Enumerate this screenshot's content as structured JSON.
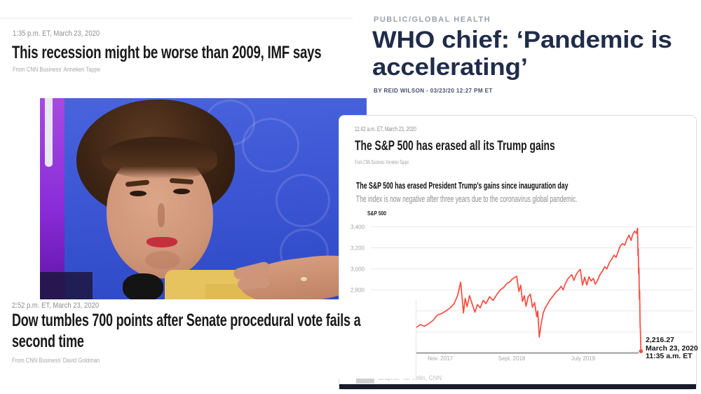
{
  "articles": {
    "recession": {
      "timestamp": "1:35 p.m. ET, March 23, 2020",
      "headline": "This recession might be worse than 2009, IMF says",
      "byline": "From CNN Business’ Anneken Tappe"
    },
    "who": {
      "kicker": "PUBLIC/GLOBAL HEALTH",
      "headline_lines": [
        "WHO chief: ‘Pandemic is",
        "accelerating’"
      ],
      "byline": "BY REID WILSON - 03/23/20 12:27 PM ET"
    },
    "sp500": {
      "timestamp": "11:42 a.m. ET, March 23, 2020",
      "headline": "The S&P 500 has erased all its Trump gains",
      "byline": "From CNN Business’ Anneken Tappe"
    },
    "dow": {
      "timestamp": "2:52 p.m. ET, March 23, 2020",
      "headline_lines": [
        "Dow tumbles 700 points after Senate procedural vote fails a",
        "second time"
      ],
      "byline": "From CNN Business’ David Goldman"
    }
  },
  "chart_data": {
    "type": "line",
    "title": "The S&P 500 has erased President Trump's gains since inauguration day",
    "subtitle": "The index is now negative after three years due to the coronavirus global pandemic.",
    "legend": "S&P 500",
    "credit": "Graphic: Tal Yellin, CNN",
    "line_color": "#fb4a3e",
    "grid_color": "#e8e8e8",
    "axis_color": "#9b9b9b",
    "tick_color": "#a5a5a5",
    "ylim": [
      2200,
      3400
    ],
    "y_axis": {
      "baseline": 2200,
      "gridlines": [
        {
          "v": 3400,
          "label": "3,400"
        },
        {
          "v": 3200,
          "label": "3,200"
        },
        {
          "v": 3000,
          "label": "3,000"
        },
        {
          "v": 2800,
          "label": "2,800"
        },
        {
          "v": 2600,
          "label": ""
        },
        {
          "v": 2400,
          "label": ""
        }
      ]
    },
    "x_axis": {
      "ticks": [
        {
          "label": "Nov. 2017",
          "m": 10
        },
        {
          "label": "Sept. 2018",
          "m": 20
        },
        {
          "label": "July 2019",
          "m": 30
        }
      ]
    },
    "annotation": {
      "lines": [
        "2,216.27",
        "March 23, 2020",
        "11:35 a.m. ET"
      ],
      "value": 2216.27
    },
    "series": {
      "name": "S&P 500",
      "x_unit": "months since Jan 2017",
      "points": [
        [
          0.6,
          2271
        ],
        [
          1.2,
          2280
        ],
        [
          1.8,
          2330
        ],
        [
          2.4,
          2363
        ],
        [
          2.8,
          2340
        ],
        [
          3.4,
          2385
        ],
        [
          4.2,
          2390
        ],
        [
          4.8,
          2406
        ],
        [
          5.4,
          2430
        ],
        [
          6.0,
          2415
        ],
        [
          6.6,
          2440
        ],
        [
          7.2,
          2470
        ],
        [
          7.8,
          2455
        ],
        [
          8.4,
          2480
        ],
        [
          9.0,
          2510
        ],
        [
          9.6,
          2560
        ],
        [
          10.2,
          2575
        ],
        [
          10.8,
          2600
        ],
        [
          11.4,
          2630
        ],
        [
          11.9,
          2665
        ],
        [
          12.4,
          2740
        ],
        [
          12.85,
          2873
        ],
        [
          13.1,
          2700
        ],
        [
          13.25,
          2581
        ],
        [
          13.5,
          2720
        ],
        [
          13.75,
          2640
        ],
        [
          14.1,
          2745
        ],
        [
          14.4,
          2680
        ],
        [
          14.85,
          2588
        ],
        [
          15.2,
          2660
        ],
        [
          15.6,
          2630
        ],
        [
          16.0,
          2700
        ],
        [
          16.4,
          2670
        ],
        [
          16.9,
          2735
        ],
        [
          17.4,
          2700
        ],
        [
          17.9,
          2755
        ],
        [
          18.4,
          2800
        ],
        [
          18.9,
          2825
        ],
        [
          19.3,
          2860
        ],
        [
          19.7,
          2875
        ],
        [
          20.1,
          2905
        ],
        [
          20.7,
          2930
        ],
        [
          21.0,
          2785
        ],
        [
          21.25,
          2845
        ],
        [
          21.5,
          2690
        ],
        [
          21.75,
          2745
        ],
        [
          22.0,
          2645
        ],
        [
          22.3,
          2735
        ],
        [
          22.6,
          2760
        ],
        [
          22.9,
          2635
        ],
        [
          23.2,
          2680
        ],
        [
          23.5,
          2545
        ],
        [
          23.65,
          2600
        ],
        [
          23.85,
          2351
        ],
        [
          24.1,
          2470
        ],
        [
          24.4,
          2580
        ],
        [
          24.7,
          2630
        ],
        [
          25.0,
          2665
        ],
        [
          25.4,
          2710
        ],
        [
          25.8,
          2745
        ],
        [
          26.2,
          2780
        ],
        [
          26.6,
          2805
        ],
        [
          26.9,
          2835
        ],
        [
          27.2,
          2800
        ],
        [
          27.5,
          2860
        ],
        [
          27.8,
          2900
        ],
        [
          28.1,
          2925
        ],
        [
          28.4,
          2945
        ],
        [
          28.7,
          2890
        ],
        [
          29.0,
          2945
        ],
        [
          29.3,
          2975
        ],
        [
          29.6,
          2995
        ],
        [
          29.9,
          2845
        ],
        [
          30.2,
          2920
        ],
        [
          30.5,
          2847
        ],
        [
          30.8,
          2925
        ],
        [
          31.1,
          2885
        ],
        [
          31.4,
          2910
        ],
        [
          31.7,
          2855
        ],
        [
          32.0,
          2890
        ],
        [
          32.3,
          2940
        ],
        [
          32.7,
          2980
        ],
        [
          33.0,
          3020
        ],
        [
          33.3,
          3000
        ],
        [
          33.7,
          3065
        ],
        [
          34.0,
          3095
        ],
        [
          34.3,
          3130
        ],
        [
          34.6,
          3110
        ],
        [
          34.9,
          3170
        ],
        [
          35.2,
          3220
        ],
        [
          35.5,
          3240
        ],
        [
          35.8,
          3225
        ],
        [
          36.1,
          3280
        ],
        [
          36.4,
          3320
        ],
        [
          36.7,
          3270
        ],
        [
          36.9,
          3325
        ],
        [
          37.2,
          3358
        ],
        [
          37.45,
          3338
        ],
        [
          37.6,
          3386
        ],
        [
          37.66,
          3128
        ],
        [
          37.7,
          3190
        ],
        [
          37.75,
          2954
        ],
        [
          37.79,
          3010
        ],
        [
          37.85,
          2711
        ],
        [
          37.89,
          2790
        ],
        [
          37.95,
          2480
        ],
        [
          38.0,
          2400
        ],
        [
          38.07,
          2216.27
        ]
      ]
    }
  },
  "colors": {
    "cnn_red": "#fb4a3e",
    "hill_navy": "#202c49",
    "dark_bar": "#171c28",
    "photo_blue": "#3a54d2",
    "photo_purple": "#8a2cd8"
  }
}
